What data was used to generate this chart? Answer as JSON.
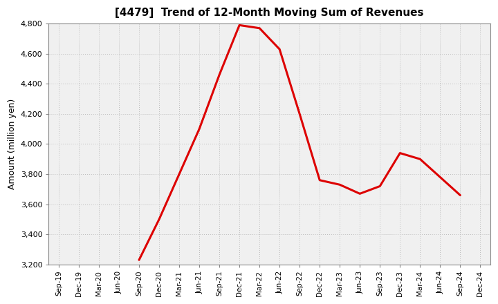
{
  "title": "[4479]  Trend of 12-Month Moving Sum of Revenues",
  "ylabel": "Amount (million yen)",
  "line_color": "#dd0000",
  "background_color": "#ffffff",
  "plot_bg_color": "#f0f0f0",
  "grid_color": "#bbbbbb",
  "ylim": [
    3200,
    4800
  ],
  "yticks": [
    3200,
    3400,
    3600,
    3800,
    4000,
    4200,
    4400,
    4600,
    4800
  ],
  "x_labels": [
    "Sep-19",
    "Dec-19",
    "Mar-20",
    "Jun-20",
    "Sep-20",
    "Dec-20",
    "Mar-21",
    "Jun-21",
    "Sep-21",
    "Dec-21",
    "Mar-22",
    "Jun-22",
    "Sep-22",
    "Dec-22",
    "Mar-23",
    "Jun-23",
    "Sep-23",
    "Dec-23",
    "Mar-24",
    "Jun-24",
    "Sep-24",
    "Dec-24"
  ],
  "series_x": [
    4,
    5,
    6,
    7,
    8,
    9,
    10,
    11,
    12,
    13,
    14,
    15,
    16,
    17,
    18,
    19,
    20
  ],
  "series_y": [
    3230,
    3500,
    3800,
    4100,
    4460,
    4790,
    4770,
    4630,
    4200,
    3760,
    3730,
    3670,
    3720,
    3940,
    3900,
    3780,
    3660
  ]
}
